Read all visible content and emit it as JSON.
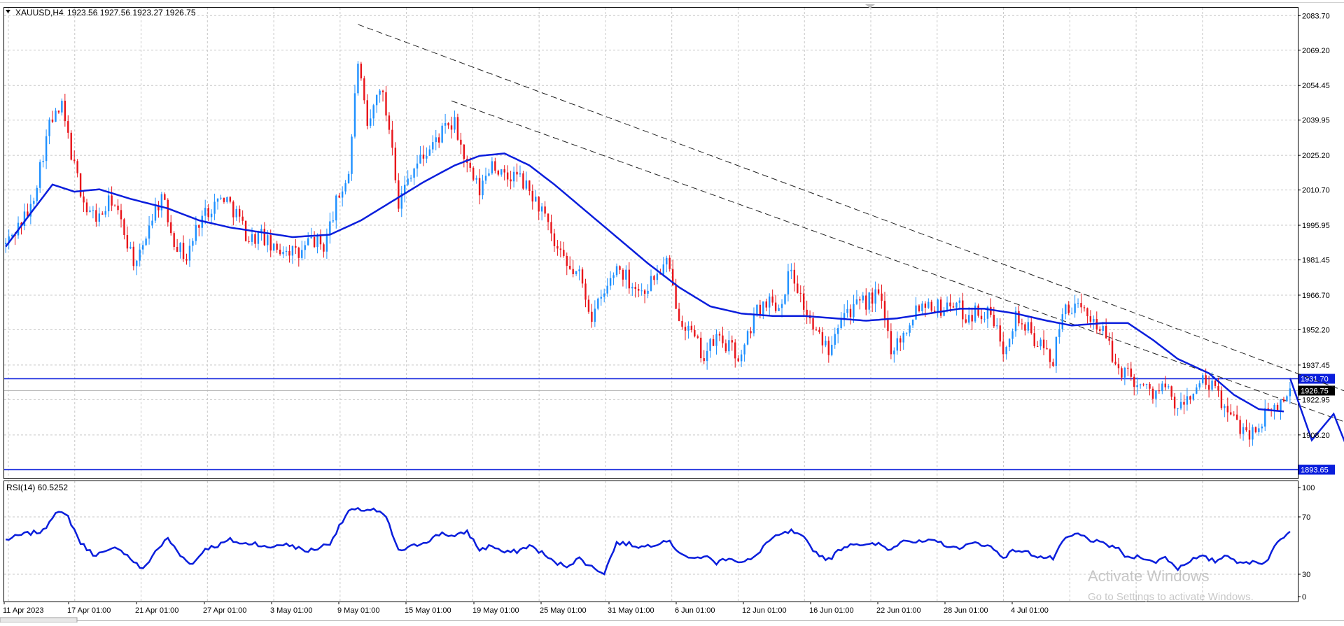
{
  "header": {
    "symbol_timeframe": "XAUUSD,H4",
    "ohlc": "1923.56 1927.56 1923.27 1926.75"
  },
  "indicator": {
    "label": "RSI(14) 60.5252"
  },
  "watermark": {
    "line1": "Activate Windows",
    "line2": "Go to Settings to activate Windows."
  },
  "colors": {
    "bull": "#1E90FF",
    "bear": "#E8141A",
    "ma": "#0A1EDC",
    "levels": "#0A1EDC",
    "rsi": "#0A1EDC",
    "grid": "#C8C8C8",
    "trendline": "#222222",
    "current_price_bg": "#000000"
  },
  "chart_data": [
    {
      "type": "candlestick",
      "title": "XAUUSD,H4",
      "ohlc_last": {
        "open": 1923.56,
        "high": 1927.56,
        "low": 1923.27,
        "close": 1926.75
      },
      "ylim": [
        1890.0,
        2087.0
      ],
      "y_ticks": [
        1908.2,
        1922.95,
        1937.45,
        1952.2,
        1966.7,
        1981.45,
        1995.95,
        2010.7,
        2025.2,
        2039.95,
        2054.45,
        2069.2,
        2083.7
      ],
      "y_tick_labels": [
        "1908.20",
        "1922.95",
        "1937.45",
        "1952.20",
        "1966.70",
        "1981.45",
        "1995.95",
        "2010.70",
        "2025.20",
        "2039.95",
        "2054.45",
        "2069.20",
        "2083.70"
      ],
      "x_tick_labels": [
        "11 Apr 2023",
        "17 Apr 01:00",
        "21 Apr 01:00",
        "27 Apr 01:00",
        "3 May 01:00",
        "9 May 01:00",
        "15 May 01:00",
        "19 May 01:00",
        "25 May 01:00",
        "31 May 01:00",
        "6 Jun 01:00",
        "12 Jun 01:00",
        "16 Jun 01:00",
        "22 Jun 01:00",
        "28 Jun 01:00",
        "4 Jul 01:00"
      ],
      "horizontal_levels": [
        {
          "price": 1931.7,
          "label": "1931.70"
        },
        {
          "price": 1893.65,
          "label": "1893.65"
        }
      ],
      "current_price": {
        "price": 1926.75,
        "label": "1926.75"
      },
      "moving_average_anchors": [
        [
          0,
          1987
        ],
        [
          8,
          2001
        ],
        [
          15,
          2013
        ],
        [
          22,
          2010
        ],
        [
          30,
          2011
        ],
        [
          40,
          2007
        ],
        [
          52,
          2003
        ],
        [
          62,
          1998
        ],
        [
          72,
          1995
        ],
        [
          82,
          1993
        ],
        [
          92,
          1991
        ],
        [
          104,
          1992
        ],
        [
          114,
          1998
        ],
        [
          124,
          2006
        ],
        [
          134,
          2014
        ],
        [
          144,
          2021
        ],
        [
          152,
          2025
        ],
        [
          160,
          2026
        ],
        [
          168,
          2021
        ],
        [
          176,
          2013
        ],
        [
          186,
          2002
        ],
        [
          196,
          1991
        ],
        [
          206,
          1980
        ],
        [
          216,
          1970
        ],
        [
          226,
          1962
        ],
        [
          236,
          1959
        ],
        [
          246,
          1958
        ],
        [
          256,
          1958
        ],
        [
          266,
          1957
        ],
        [
          276,
          1956
        ],
        [
          286,
          1957
        ],
        [
          296,
          1959
        ],
        [
          306,
          1961
        ],
        [
          314,
          1961
        ],
        [
          324,
          1959
        ],
        [
          334,
          1956
        ],
        [
          342,
          1954
        ],
        [
          352,
          1955
        ],
        [
          360,
          1955
        ],
        [
          368,
          1948
        ],
        [
          376,
          1940
        ],
        [
          386,
          1934
        ],
        [
          394,
          1925
        ],
        [
          402,
          1919
        ],
        [
          410,
          1918
        ]
      ],
      "price_anchors": [
        [
          0,
          1988
        ],
        [
          8,
          2003
        ],
        [
          14,
          2038
        ],
        [
          18,
          2045
        ],
        [
          22,
          2020
        ],
        [
          26,
          2002
        ],
        [
          30,
          1999
        ],
        [
          34,
          2007
        ],
        [
          38,
          1993
        ],
        [
          42,
          1978
        ],
        [
          46,
          1997
        ],
        [
          50,
          2008
        ],
        [
          54,
          1990
        ],
        [
          58,
          1982
        ],
        [
          62,
          1998
        ],
        [
          66,
          2004
        ],
        [
          70,
          2008
        ],
        [
          74,
          2001
        ],
        [
          78,
          1990
        ],
        [
          82,
          1992
        ],
        [
          86,
          1985
        ],
        [
          90,
          1987
        ],
        [
          94,
          1983
        ],
        [
          98,
          1990
        ],
        [
          102,
          1987
        ],
        [
          106,
          2005
        ],
        [
          110,
          2018
        ],
        [
          113,
          2065
        ],
        [
          116,
          2035
        ],
        [
          120,
          2055
        ],
        [
          124,
          2031
        ],
        [
          126,
          2005
        ],
        [
          130,
          2019
        ],
        [
          136,
          2028
        ],
        [
          140,
          2035
        ],
        [
          144,
          2038
        ],
        [
          148,
          2020
        ],
        [
          152,
          2010
        ],
        [
          156,
          2023
        ],
        [
          160,
          2015
        ],
        [
          164,
          2017
        ],
        [
          168,
          2010
        ],
        [
          172,
          2002
        ],
        [
          176,
          1987
        ],
        [
          180,
          1978
        ],
        [
          184,
          1975
        ],
        [
          188,
          1958
        ],
        [
          192,
          1967
        ],
        [
          196,
          1979
        ],
        [
          200,
          1973
        ],
        [
          204,
          1968
        ],
        [
          208,
          1974
        ],
        [
          212,
          1980
        ],
        [
          216,
          1959
        ],
        [
          220,
          1950
        ],
        [
          224,
          1941
        ],
        [
          228,
          1949
        ],
        [
          232,
          1945
        ],
        [
          236,
          1940
        ],
        [
          240,
          1958
        ],
        [
          244,
          1965
        ],
        [
          248,
          1962
        ],
        [
          252,
          1978
        ],
        [
          256,
          1962
        ],
        [
          260,
          1950
        ],
        [
          264,
          1945
        ],
        [
          268,
          1960
        ],
        [
          272,
          1961
        ],
        [
          276,
          1964
        ],
        [
          280,
          1967
        ],
        [
          284,
          1945
        ],
        [
          288,
          1950
        ],
        [
          292,
          1962
        ],
        [
          296,
          1964
        ],
        [
          300,
          1961
        ],
        [
          304,
          1964
        ],
        [
          308,
          1958
        ],
        [
          312,
          1960
        ],
        [
          316,
          1958
        ],
        [
          320,
          1945
        ],
        [
          324,
          1958
        ],
        [
          328,
          1952
        ],
        [
          332,
          1945
        ],
        [
          336,
          1940
        ],
        [
          340,
          1963
        ],
        [
          344,
          1960
        ],
        [
          348,
          1958
        ],
        [
          352,
          1952
        ],
        [
          356,
          1937
        ],
        [
          360,
          1934
        ],
        [
          364,
          1929
        ],
        [
          368,
          1926
        ],
        [
          372,
          1928
        ],
        [
          376,
          1918
        ],
        [
          380,
          1925
        ],
        [
          384,
          1930
        ],
        [
          388,
          1927
        ],
        [
          392,
          1917
        ],
        [
          396,
          1912
        ],
        [
          400,
          1909
        ],
        [
          404,
          1916
        ],
        [
          408,
          1920
        ],
        [
          412,
          1927
        ]
      ],
      "forecast_path": [
        [
          412,
          1932
        ],
        [
          419,
          1906
        ],
        [
          426,
          1917
        ],
        [
          433,
          1894
        ]
      ],
      "trendlines": [
        {
          "from": [
            113,
            2080
          ],
          "to": [
            505,
            1890
          ]
        },
        {
          "from": [
            143,
            2048
          ],
          "to": [
            480,
            1890
          ]
        }
      ],
      "notes": "The bar data is approximated from the candlestick pattern; values are generated from price_anchors and moving_average_anchors (bar index, price)."
    },
    {
      "type": "line",
      "title": "RSI(14) 60.5252",
      "y_ticks": [
        0,
        30,
        70,
        100
      ],
      "y_tick_labels": [
        "0",
        "30",
        "70",
        "100"
      ],
      "ylim": [
        0,
        100
      ],
      "last_value": 60.5252,
      "anchors": [
        [
          0,
          54
        ],
        [
          6,
          58
        ],
        [
          12,
          60
        ],
        [
          16,
          74
        ],
        [
          20,
          70
        ],
        [
          24,
          52
        ],
        [
          28,
          44
        ],
        [
          32,
          45
        ],
        [
          36,
          49
        ],
        [
          40,
          41
        ],
        [
          44,
          33
        ],
        [
          48,
          46
        ],
        [
          52,
          55
        ],
        [
          56,
          43
        ],
        [
          60,
          37
        ],
        [
          64,
          48
        ],
        [
          68,
          50
        ],
        [
          72,
          54
        ],
        [
          76,
          51
        ],
        [
          80,
          52
        ],
        [
          84,
          48
        ],
        [
          88,
          51
        ],
        [
          92,
          50
        ],
        [
          96,
          46
        ],
        [
          100,
          48
        ],
        [
          104,
          52
        ],
        [
          110,
          74
        ],
        [
          114,
          75
        ],
        [
          118,
          75
        ],
        [
          122,
          70
        ],
        [
          126,
          46
        ],
        [
          130,
          49
        ],
        [
          136,
          54
        ],
        [
          140,
          59
        ],
        [
          144,
          56
        ],
        [
          148,
          60
        ],
        [
          152,
          47
        ],
        [
          156,
          50
        ],
        [
          160,
          45
        ],
        [
          164,
          46
        ],
        [
          168,
          50
        ],
        [
          172,
          45
        ],
        [
          176,
          38
        ],
        [
          180,
          36
        ],
        [
          184,
          41
        ],
        [
          188,
          35
        ],
        [
          192,
          31
        ],
        [
          196,
          52
        ],
        [
          200,
          51
        ],
        [
          204,
          49
        ],
        [
          208,
          51
        ],
        [
          212,
          54
        ],
        [
          216,
          46
        ],
        [
          220,
          40
        ],
        [
          224,
          43
        ],
        [
          228,
          38
        ],
        [
          232,
          42
        ],
        [
          236,
          38
        ],
        [
          240,
          41
        ],
        [
          244,
          52
        ],
        [
          248,
          57
        ],
        [
          252,
          60
        ],
        [
          256,
          55
        ],
        [
          260,
          45
        ],
        [
          264,
          40
        ],
        [
          268,
          48
        ],
        [
          272,
          52
        ],
        [
          276,
          50
        ],
        [
          280,
          51
        ],
        [
          284,
          47
        ],
        [
          288,
          55
        ],
        [
          292,
          52
        ],
        [
          296,
          53
        ],
        [
          300,
          52
        ],
        [
          304,
          48
        ],
        [
          308,
          50
        ],
        [
          312,
          52
        ],
        [
          316,
          49
        ],
        [
          320,
          42
        ],
        [
          324,
          47
        ],
        [
          328,
          45
        ],
        [
          332,
          42
        ],
        [
          336,
          41
        ],
        [
          340,
          55
        ],
        [
          344,
          58
        ],
        [
          348,
          54
        ],
        [
          352,
          51
        ],
        [
          356,
          49
        ],
        [
          360,
          41
        ],
        [
          364,
          43
        ],
        [
          368,
          38
        ],
        [
          372,
          42
        ],
        [
          376,
          34
        ],
        [
          380,
          40
        ],
        [
          384,
          42
        ],
        [
          388,
          39
        ],
        [
          392,
          44
        ],
        [
          396,
          37
        ],
        [
          400,
          39
        ],
        [
          404,
          38
        ],
        [
          408,
          52
        ],
        [
          412,
          61
        ]
      ]
    }
  ]
}
